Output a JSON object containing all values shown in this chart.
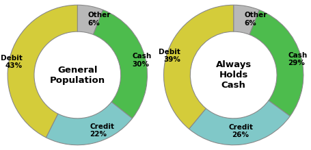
{
  "chart1": {
    "title": "General\nPopulation",
    "values": [
      30,
      22,
      43,
      6
    ],
    "colors": [
      "#4dbc4d",
      "#80c8c8",
      "#d4cc3a",
      "#b8b8b8"
    ],
    "label_texts": [
      "Cash\n30%",
      "Credit\n22%",
      "Debit\n43%",
      "Other\n6%"
    ]
  },
  "chart2": {
    "title": "Always\nHolds\nCash",
    "values": [
      29,
      26,
      39,
      6
    ],
    "colors": [
      "#4dbc4d",
      "#80c8c8",
      "#d4cc3a",
      "#b8b8b8"
    ],
    "label_texts": [
      "Cash\n29%",
      "Credit\n26%",
      "Debit\n39%",
      "Other\n6%"
    ]
  },
  "background_color": "#ffffff",
  "title_fontsize": 9.5,
  "label_fontsize": 7.5,
  "wedge_edge_color": "#888888",
  "wedge_linewidth": 0.8,
  "donut_width": 0.38,
  "label_r": 0.72
}
